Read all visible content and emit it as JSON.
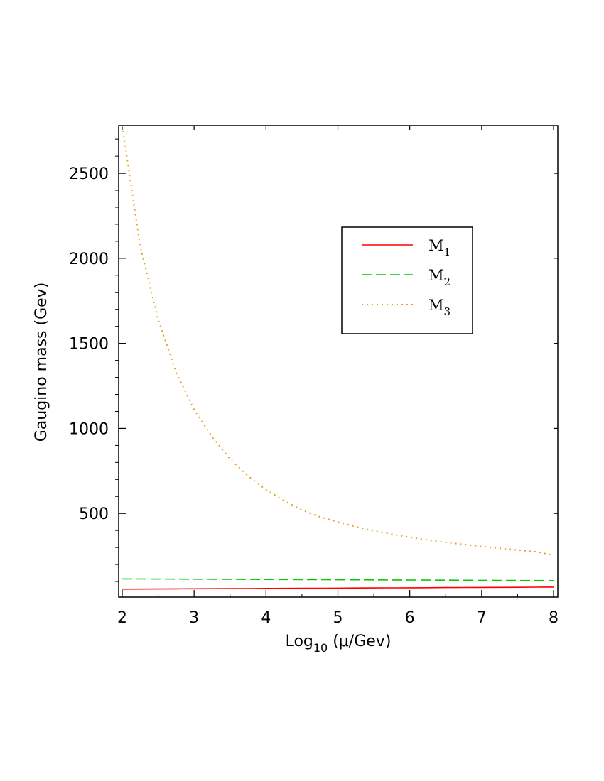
{
  "chart_data": {
    "type": "line",
    "xlabel": {
      "main": "Log",
      "sub": "10",
      "rest": " (μ/Gev)"
    },
    "ylabel": "Gaugino mass (Gev)",
    "xlim": [
      2,
      8
    ],
    "ylim": [
      50,
      2780
    ],
    "xticks": [
      2,
      3,
      4,
      5,
      6,
      7,
      8
    ],
    "yticks": [
      500,
      1000,
      1500,
      2000,
      2500
    ],
    "x_minor_step": 0.5,
    "y_minor_step": 100,
    "grid": false,
    "legend_position": "upper-right",
    "x": [
      2,
      2.25,
      2.5,
      2.75,
      3,
      3.25,
      3.5,
      3.75,
      4,
      4.25,
      4.5,
      4.75,
      5,
      5.25,
      5.5,
      5.75,
      6,
      6.25,
      6.5,
      6.75,
      7,
      7.25,
      7.5,
      7.75,
      8
    ],
    "series": [
      {
        "name": "M",
        "sub": "1",
        "color": "#ff0000",
        "dash": "solid",
        "values": [
          55,
          55.5,
          56,
          56.5,
          57,
          57.5,
          58,
          58.5,
          59,
          59.5,
          60,
          60.5,
          61,
          61.5,
          62,
          62.5,
          63,
          63.5,
          64,
          64.5,
          65,
          65.5,
          66,
          66.5,
          67
        ]
      },
      {
        "name": "M",
        "sub": "2",
        "color": "#00cc00",
        "dash": "dashed",
        "values": [
          115,
          114.6,
          114.2,
          113.8,
          113.3,
          112.9,
          112.5,
          112,
          111.6,
          111.2,
          110.8,
          110.4,
          110,
          109.6,
          109.2,
          108.8,
          108.3,
          107.9,
          107.5,
          107,
          106.6,
          106.2,
          105.8,
          105.4,
          105
        ]
      },
      {
        "name": "M",
        "sub": "3",
        "color": "#e6a020",
        "dash": "dotted",
        "values": [
          2780,
          2070,
          1640,
          1330,
          1110,
          950,
          820,
          720,
          640,
          575,
          520,
          480,
          450,
          422,
          398,
          378,
          360,
          344,
          330,
          318,
          306,
          295,
          285,
          275,
          255
        ]
      }
    ]
  }
}
